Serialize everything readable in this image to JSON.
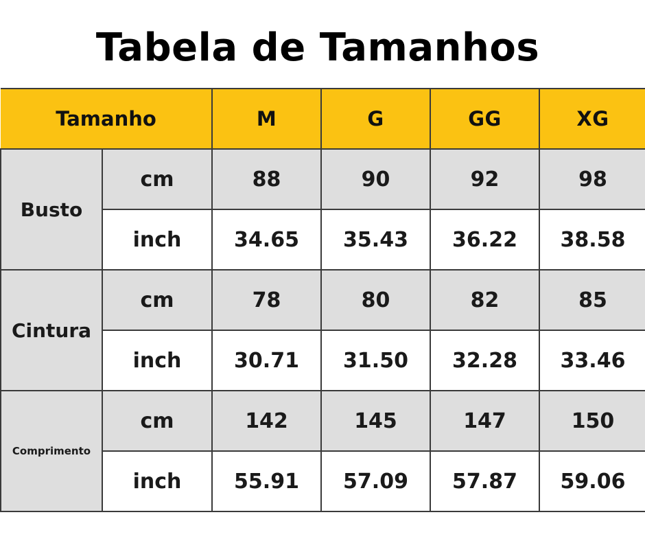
{
  "title": "Tabela de Tamanhos",
  "header": {
    "label": "Tamanho",
    "sizes": [
      "M",
      "G",
      "GG",
      "XG"
    ]
  },
  "units": {
    "cm": "cm",
    "inch": "inch"
  },
  "measurements": [
    {
      "label": "Busto",
      "cm": [
        "88",
        "90",
        "92",
        "98"
      ],
      "inch": [
        "34.65",
        "35.43",
        "36.22",
        "38.58"
      ]
    },
    {
      "label": "Cintura",
      "cm": [
        "78",
        "80",
        "82",
        "85"
      ],
      "inch": [
        "30.71",
        "31.50",
        "32.28",
        "33.46"
      ]
    },
    {
      "label": "Comprimento",
      "cm": [
        "142",
        "145",
        "147",
        "150"
      ],
      "inch": [
        "55.91",
        "57.09",
        "57.87",
        "59.06"
      ]
    }
  ],
  "colors": {
    "header_bg": "#fbc212",
    "shaded_bg": "#dedede",
    "grid_line": "#3a3a3a"
  }
}
